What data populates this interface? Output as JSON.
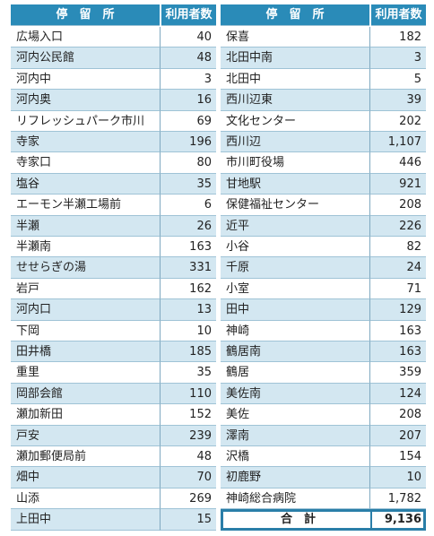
{
  "table": {
    "headers": [
      "停　留　所",
      "利用者数",
      "停　留　所",
      "利用者数"
    ],
    "left_rows": [
      [
        "広場入口",
        "40"
      ],
      [
        "河内公民館",
        "48"
      ],
      [
        "河内中",
        "3"
      ],
      [
        "河内奥",
        "16"
      ],
      [
        "リフレッシュパーク市川",
        "69"
      ],
      [
        "寺家",
        "196"
      ],
      [
        "寺家口",
        "80"
      ],
      [
        "塩谷",
        "35"
      ],
      [
        "エーモン半瀬工場前",
        "6"
      ],
      [
        "半瀬",
        "26"
      ],
      [
        "半瀬南",
        "163"
      ],
      [
        "せせらぎの湯",
        "331"
      ],
      [
        "岩戸",
        "162"
      ],
      [
        "河内口",
        "13"
      ],
      [
        "下岡",
        "10"
      ],
      [
        "田井橋",
        "185"
      ],
      [
        "重里",
        "35"
      ],
      [
        "岡部会館",
        "110"
      ],
      [
        "瀬加新田",
        "152"
      ],
      [
        "戸安",
        "239"
      ],
      [
        "瀬加郵便局前",
        "48"
      ],
      [
        "畑中",
        "70"
      ],
      [
        "山添",
        "269"
      ],
      [
        "上田中",
        "15"
      ]
    ],
    "right_rows": [
      [
        "保喜",
        "182"
      ],
      [
        "北田中南",
        "3"
      ],
      [
        "北田中",
        "5"
      ],
      [
        "西川辺東",
        "39"
      ],
      [
        "文化センター",
        "202"
      ],
      [
        "西川辺",
        "1,107"
      ],
      [
        "市川町役場",
        "446"
      ],
      [
        "甘地駅",
        "921"
      ],
      [
        "保健福祉センター",
        "208"
      ],
      [
        "近平",
        "226"
      ],
      [
        "小谷",
        "82"
      ],
      [
        "千原",
        "24"
      ],
      [
        "小室",
        "71"
      ],
      [
        "田中",
        "129"
      ],
      [
        "神崎",
        "163"
      ],
      [
        "鶴居南",
        "163"
      ],
      [
        "鶴居",
        "359"
      ],
      [
        "美佐南",
        "124"
      ],
      [
        "美佐",
        "208"
      ],
      [
        "澤南",
        "207"
      ],
      [
        "沢橋",
        "154"
      ],
      [
        "初鹿野",
        "10"
      ],
      [
        "神崎総合病院",
        "1,782"
      ]
    ],
    "total": {
      "label": "合　計",
      "value": "9,136"
    }
  }
}
